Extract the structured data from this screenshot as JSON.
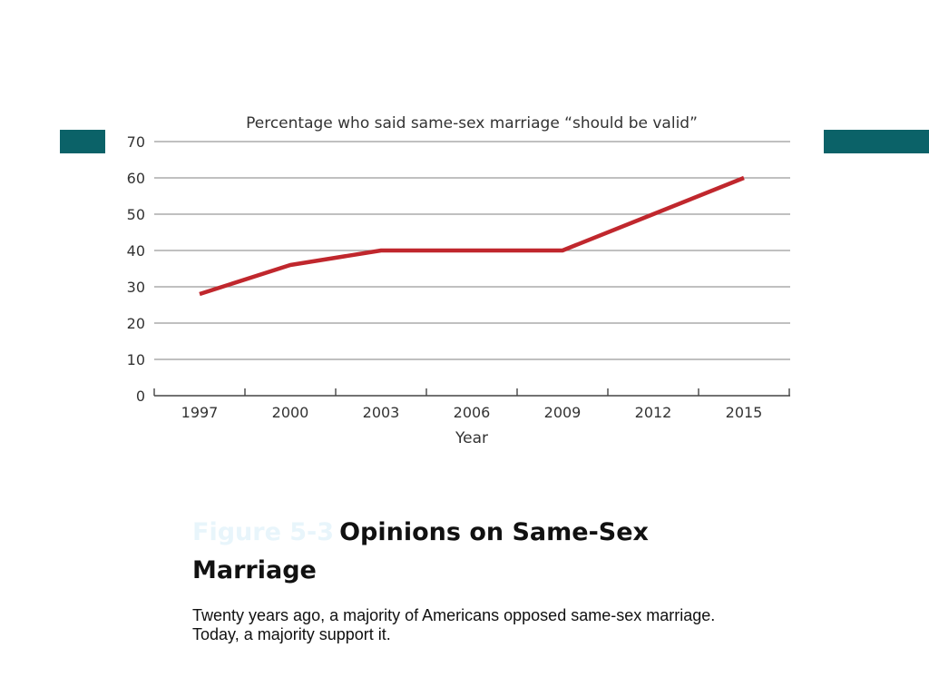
{
  "colors": {
    "accent": "#0b6268",
    "line": "#c0272d",
    "grid": "#9a9a9a",
    "figure_label": "#e8f5fb"
  },
  "chart_data": {
    "type": "line",
    "title": "Percentage who said same-sex marriage “should be valid”",
    "xlabel": "Year",
    "ylabel": "",
    "x": [
      "1997",
      "2000",
      "2003",
      "2006",
      "2009",
      "2012",
      "2015"
    ],
    "series": [
      {
        "values": [
          28,
          36,
          40,
          40,
          40,
          50,
          60
        ]
      }
    ],
    "ylim": [
      0,
      70
    ],
    "yticks": [
      0,
      10,
      20,
      30,
      40,
      50,
      60,
      70
    ],
    "grid": true
  },
  "caption": {
    "figure_label": "Figure 5-3",
    "title": "Opinions on Same-Sex Marriage",
    "description": "Twenty years ago, a majority of Americans opposed same-sex marriage. Today, a majority support it."
  }
}
